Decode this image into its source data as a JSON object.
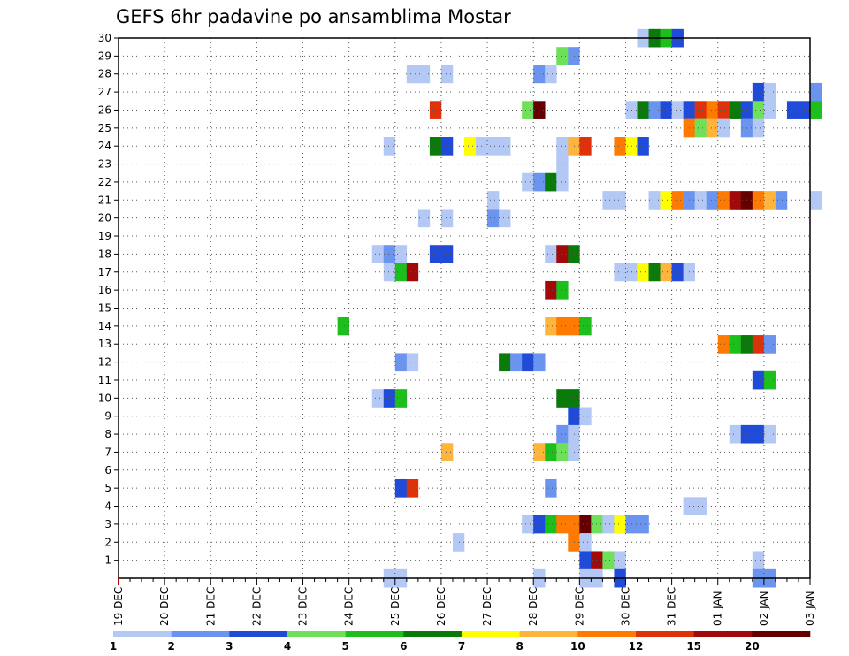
{
  "chart_data": {
    "type": "heatmap",
    "title": "GEFS 6hr padavine po ansamblima Mostar",
    "xlabel": "",
    "ylabel": "",
    "x_tick_labels": [
      "19 DEC",
      "20 DEC",
      "21 DEC",
      "22 DEC",
      "23 DEC",
      "24 DEC",
      "25 DEC",
      "26 DEC",
      "27 DEC",
      "28 DEC",
      "29 DEC",
      "30 DEC",
      "31 DEC",
      "01 JAN",
      "02 JAN",
      "03 JAN"
    ],
    "y_tick_labels": [
      "1",
      "2",
      "3",
      "4",
      "5",
      "6",
      "7",
      "8",
      "9",
      "10",
      "11",
      "12",
      "13",
      "14",
      "15",
      "16",
      "17",
      "18",
      "19",
      "20",
      "21",
      "22",
      "23",
      "24",
      "25",
      "26",
      "27",
      "28",
      "29",
      "30"
    ],
    "xlim": [
      0,
      60
    ],
    "ylim": [
      0,
      30
    ],
    "grid": true,
    "colorbar": {
      "boundaries": [
        "1",
        "2",
        "3",
        "4",
        "5",
        "6",
        "7",
        "8",
        "10",
        "12",
        "15",
        "20"
      ],
      "colors": [
        "#b4c8f5",
        "#6b94ee",
        "#1f4bd8",
        "#6fe05a",
        "#1dbf1d",
        "#0a7a0a",
        "#ffff00",
        "#ffb43c",
        "#ff7a00",
        "#e0320a",
        "#a00a0a",
        "#640000"
      ]
    },
    "cells_note": "x = 6-hour step index from 19 DEC 00Z, y = ensemble member, v = colorbar class index (0-11)",
    "cells": [
      [
        45,
        30,
        0
      ],
      [
        46,
        30,
        5
      ],
      [
        47,
        30,
        4
      ],
      [
        48,
        30,
        2
      ],
      [
        38,
        29,
        3
      ],
      [
        39,
        29,
        1
      ],
      [
        25,
        28,
        0
      ],
      [
        26,
        28,
        0
      ],
      [
        28,
        28,
        0
      ],
      [
        36,
        28,
        1
      ],
      [
        37,
        28,
        0
      ],
      [
        55,
        27,
        2
      ],
      [
        56,
        27,
        0
      ],
      [
        60,
        27,
        1
      ],
      [
        27,
        26,
        9
      ],
      [
        35,
        26,
        3
      ],
      [
        36,
        26,
        11
      ],
      [
        44,
        26,
        0
      ],
      [
        45,
        26,
        5
      ],
      [
        46,
        26,
        1
      ],
      [
        47,
        26,
        2
      ],
      [
        48,
        26,
        0
      ],
      [
        49,
        26,
        2
      ],
      [
        50,
        26,
        9
      ],
      [
        51,
        26,
        8
      ],
      [
        52,
        26,
        9
      ],
      [
        53,
        26,
        5
      ],
      [
        54,
        26,
        2
      ],
      [
        55,
        26,
        3
      ],
      [
        56,
        26,
        0
      ],
      [
        58,
        26,
        2
      ],
      [
        59,
        26,
        2
      ],
      [
        60,
        26,
        4
      ],
      [
        49,
        25,
        8
      ],
      [
        50,
        25,
        3
      ],
      [
        51,
        25,
        7
      ],
      [
        52,
        25,
        0
      ],
      [
        54,
        25,
        1
      ],
      [
        55,
        25,
        0
      ],
      [
        23,
        24,
        0
      ],
      [
        27,
        24,
        5
      ],
      [
        28,
        24,
        2
      ],
      [
        30,
        24,
        6
      ],
      [
        31,
        24,
        0
      ],
      [
        32,
        24,
        0
      ],
      [
        33,
        24,
        0
      ],
      [
        38,
        24,
        0
      ],
      [
        39,
        24,
        7
      ],
      [
        40,
        24,
        9
      ],
      [
        43,
        24,
        8
      ],
      [
        44,
        24,
        6
      ],
      [
        45,
        24,
        2
      ],
      [
        38,
        23,
        0
      ],
      [
        35,
        22,
        0
      ],
      [
        36,
        22,
        1
      ],
      [
        37,
        22,
        5
      ],
      [
        38,
        22,
        0
      ],
      [
        32,
        21,
        0
      ],
      [
        42,
        21,
        0
      ],
      [
        43,
        21,
        0
      ],
      [
        46,
        21,
        0
      ],
      [
        47,
        21,
        6
      ],
      [
        48,
        21,
        8
      ],
      [
        49,
        21,
        1
      ],
      [
        50,
        21,
        0
      ],
      [
        51,
        21,
        1
      ],
      [
        52,
        21,
        8
      ],
      [
        53,
        21,
        10
      ],
      [
        54,
        21,
        11
      ],
      [
        55,
        21,
        8
      ],
      [
        56,
        21,
        7
      ],
      [
        57,
        21,
        1
      ],
      [
        60,
        21,
        0
      ],
      [
        26,
        20,
        0
      ],
      [
        28,
        20,
        0
      ],
      [
        32,
        20,
        1
      ],
      [
        33,
        20,
        0
      ],
      [
        22,
        18,
        0
      ],
      [
        23,
        18,
        1
      ],
      [
        24,
        18,
        0
      ],
      [
        27,
        18,
        2
      ],
      [
        28,
        18,
        2
      ],
      [
        37,
        18,
        0
      ],
      [
        38,
        18,
        10
      ],
      [
        39,
        18,
        5
      ],
      [
        23,
        17,
        0
      ],
      [
        24,
        17,
        4
      ],
      [
        25,
        17,
        10
      ],
      [
        43,
        17,
        0
      ],
      [
        44,
        17,
        0
      ],
      [
        45,
        17,
        6
      ],
      [
        46,
        17,
        5
      ],
      [
        47,
        17,
        7
      ],
      [
        48,
        17,
        2
      ],
      [
        49,
        17,
        0
      ],
      [
        37,
        16,
        10
      ],
      [
        38,
        16,
        4
      ],
      [
        37,
        14,
        7
      ],
      [
        38,
        14,
        8
      ],
      [
        39,
        14,
        8
      ],
      [
        40,
        14,
        4
      ],
      [
        19,
        14,
        4
      ],
      [
        52,
        13,
        8
      ],
      [
        53,
        13,
        4
      ],
      [
        54,
        13,
        5
      ],
      [
        55,
        13,
        9
      ],
      [
        56,
        13,
        1
      ],
      [
        24,
        12,
        1
      ],
      [
        25,
        12,
        0
      ],
      [
        33,
        12,
        5
      ],
      [
        34,
        12,
        1
      ],
      [
        35,
        12,
        2
      ],
      [
        36,
        12,
        1
      ],
      [
        55,
        11,
        2
      ],
      [
        56,
        11,
        4
      ],
      [
        22,
        10,
        0
      ],
      [
        23,
        10,
        2
      ],
      [
        24,
        10,
        4
      ],
      [
        38,
        10,
        5
      ],
      [
        39,
        10,
        5
      ],
      [
        39,
        9,
        2
      ],
      [
        40,
        9,
        0
      ],
      [
        38,
        8,
        1
      ],
      [
        39,
        8,
        0
      ],
      [
        53,
        8,
        0
      ],
      [
        54,
        8,
        2
      ],
      [
        55,
        8,
        2
      ],
      [
        56,
        8,
        0
      ],
      [
        28,
        7,
        7
      ],
      [
        36,
        7,
        7
      ],
      [
        37,
        7,
        4
      ],
      [
        38,
        7,
        3
      ],
      [
        39,
        7,
        0
      ],
      [
        24,
        5,
        2
      ],
      [
        25,
        5,
        9
      ],
      [
        37,
        5,
        1
      ],
      [
        49,
        4,
        0
      ],
      [
        50,
        4,
        0
      ],
      [
        35,
        3,
        0
      ],
      [
        36,
        3,
        2
      ],
      [
        37,
        3,
        4
      ],
      [
        38,
        3,
        8
      ],
      [
        39,
        3,
        8
      ],
      [
        40,
        3,
        11
      ],
      [
        41,
        3,
        3
      ],
      [
        42,
        3,
        0
      ],
      [
        43,
        3,
        6
      ],
      [
        44,
        3,
        1
      ],
      [
        45,
        3,
        1
      ],
      [
        29,
        2,
        0
      ],
      [
        39,
        2,
        8
      ],
      [
        40,
        2,
        0
      ],
      [
        40,
        1,
        2
      ],
      [
        41,
        1,
        10
      ],
      [
        42,
        1,
        3
      ],
      [
        43,
        1,
        0
      ],
      [
        55,
        1,
        0
      ],
      [
        23,
        0,
        0
      ],
      [
        24,
        0,
        0
      ],
      [
        36,
        0,
        0
      ],
      [
        40,
        0,
        0
      ],
      [
        41,
        0,
        0
      ],
      [
        43,
        0,
        2
      ],
      [
        55,
        0,
        1
      ],
      [
        56,
        0,
        1
      ]
    ]
  }
}
